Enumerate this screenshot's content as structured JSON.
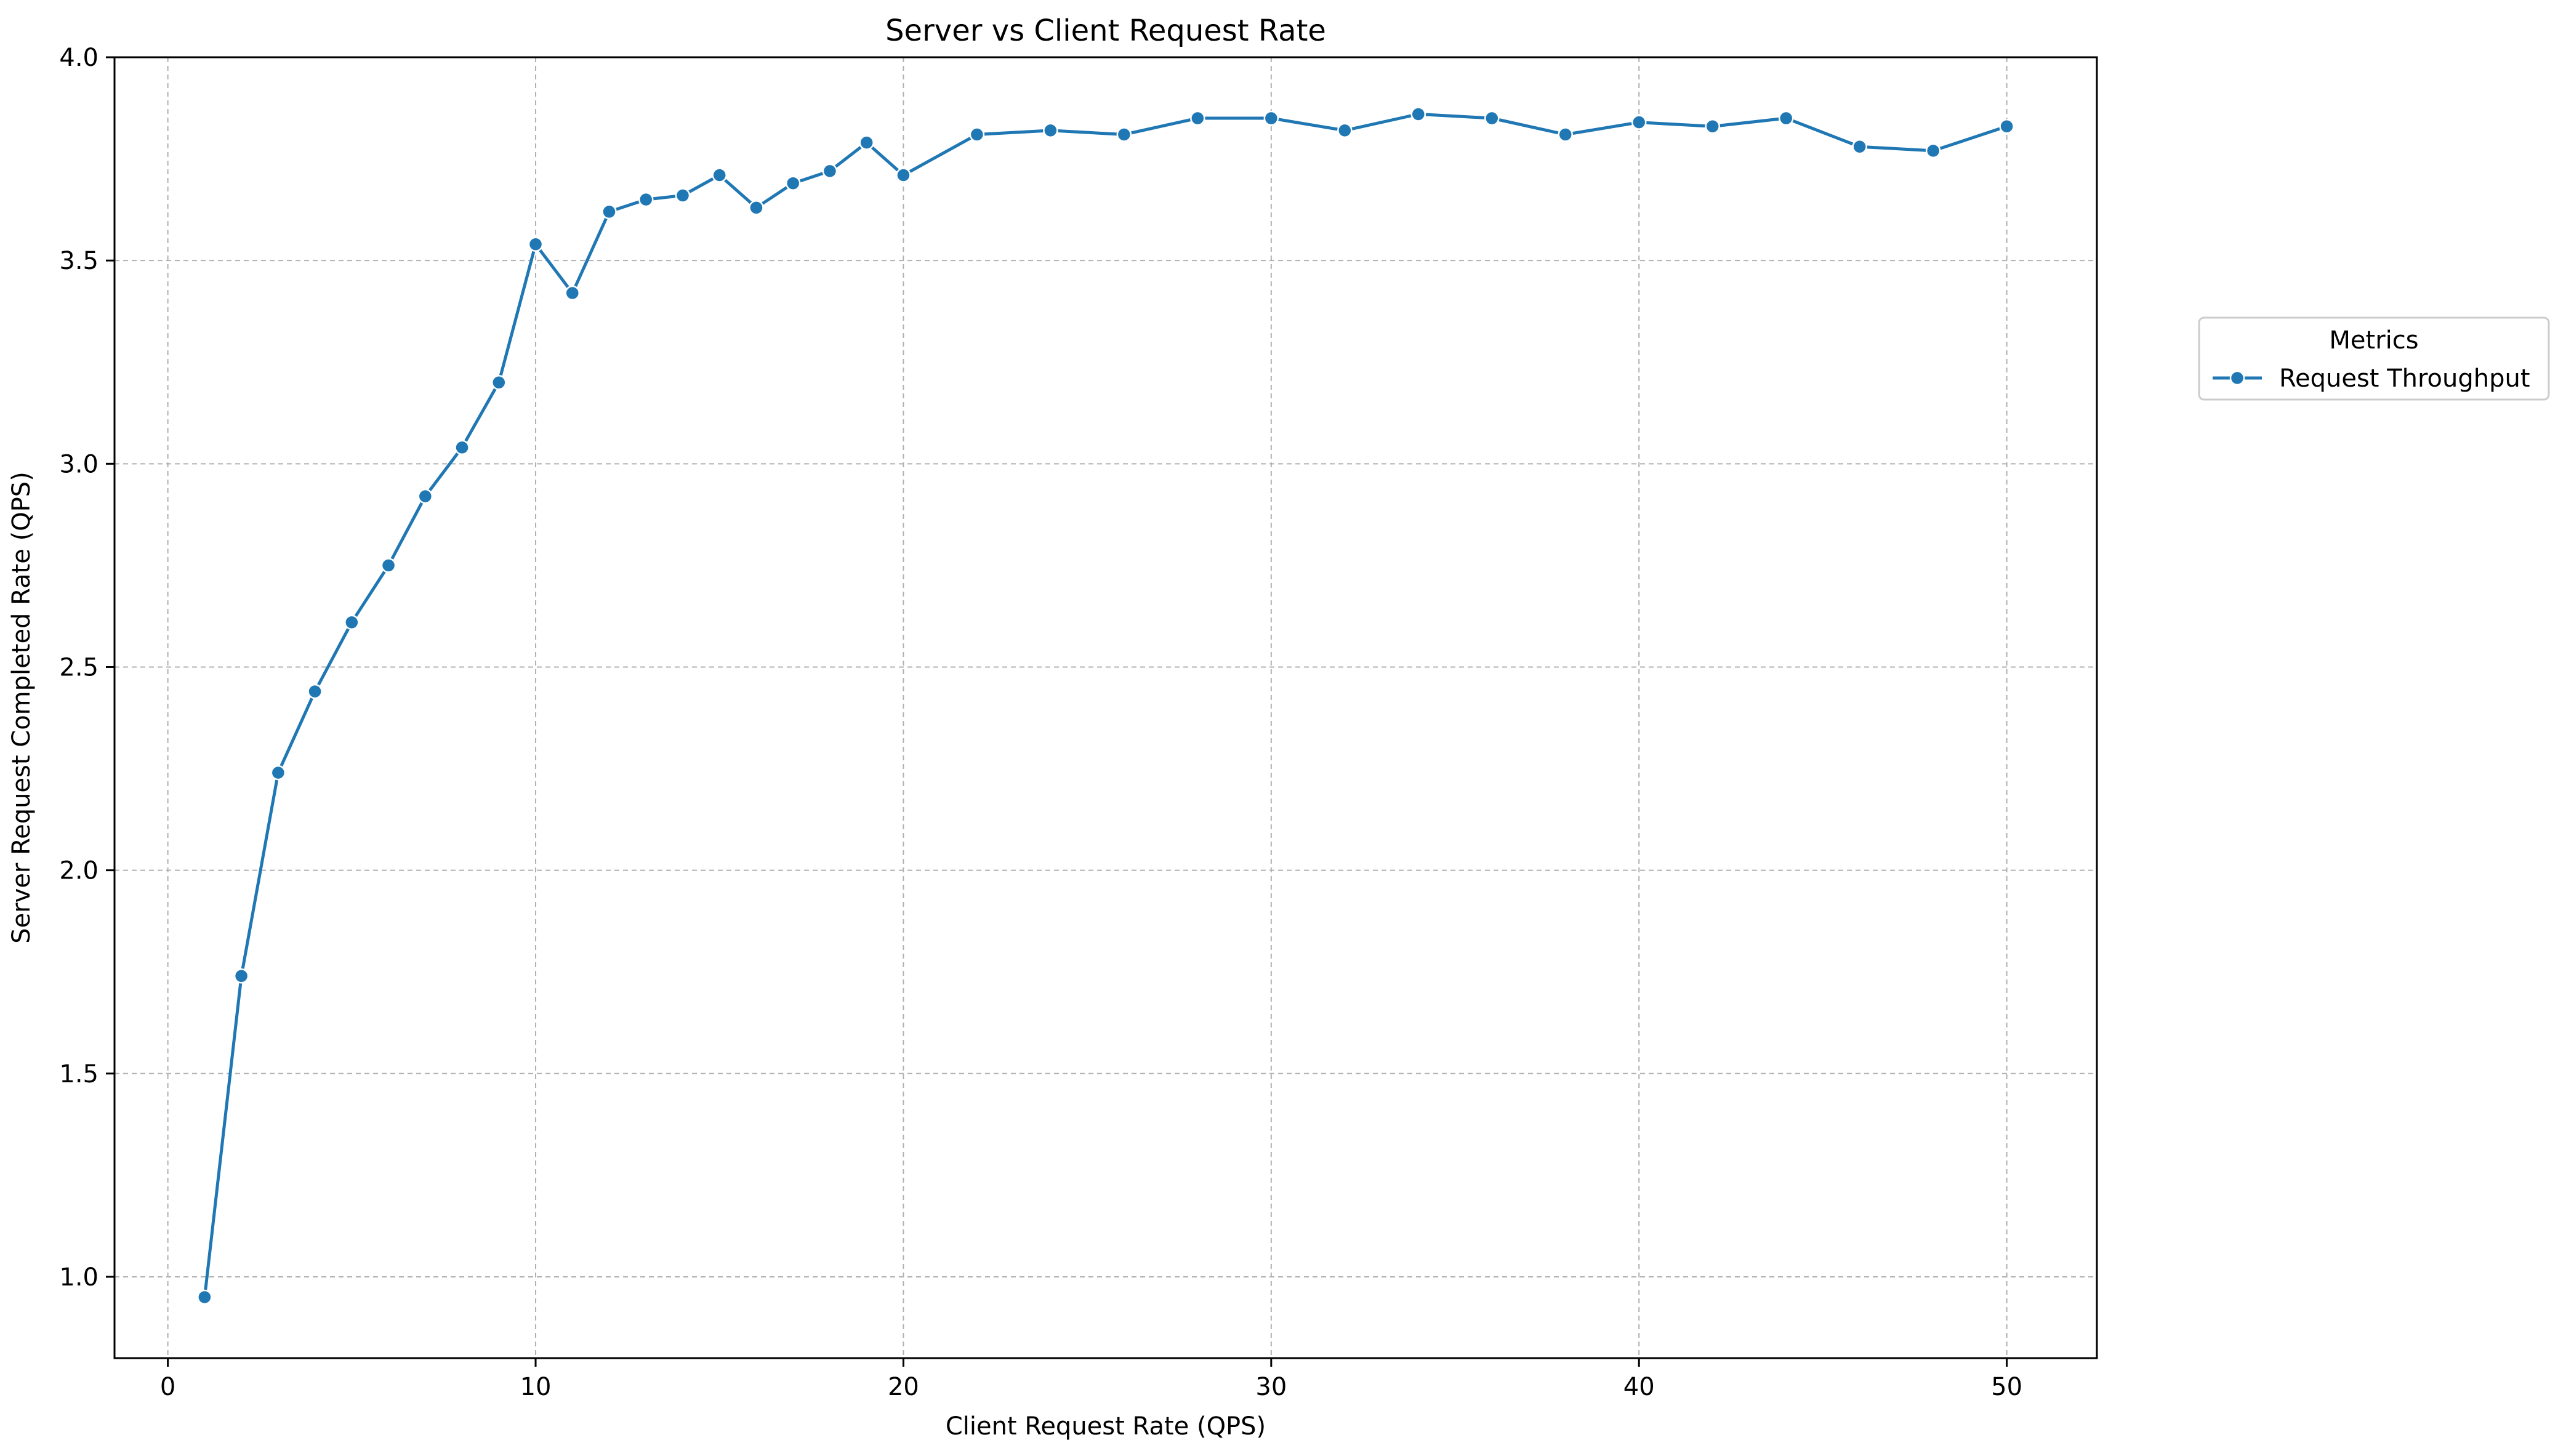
{
  "chart_data": {
    "type": "line",
    "title": "Server vs Client Request Rate",
    "xlabel": "Client Request Rate (QPS)",
    "ylabel": "Server Request Completed Rate (QPS)",
    "xlim": [
      -1.45,
      52.45
    ],
    "ylim": [
      0.8,
      4.0
    ],
    "xticks": [
      0,
      10,
      20,
      30,
      40,
      50
    ],
    "yticks": [
      1.0,
      1.5,
      2.0,
      2.5,
      3.0,
      3.5,
      4.0
    ],
    "xtick_labels": [
      "0",
      "10",
      "20",
      "30",
      "40",
      "50"
    ],
    "ytick_labels": [
      "1.0",
      "1.5",
      "2.0",
      "2.5",
      "3.0",
      "3.5",
      "4.0"
    ],
    "grid": true,
    "legend": {
      "title": "Metrics",
      "placement": "outside-right-top"
    },
    "series": [
      {
        "name": "Request Throughput",
        "color": "#1f77b4",
        "marker": "circle",
        "x": [
          1,
          2,
          3,
          4,
          5,
          6,
          7,
          8,
          9,
          10,
          11,
          12,
          13,
          14,
          15,
          16,
          17,
          18,
          19,
          20,
          22,
          24,
          26,
          28,
          30,
          32,
          34,
          36,
          38,
          40,
          42,
          44,
          46,
          48,
          50
        ],
        "y": [
          0.95,
          1.74,
          2.24,
          2.44,
          2.61,
          2.75,
          2.92,
          3.04,
          3.2,
          3.54,
          3.42,
          3.62,
          3.65,
          3.66,
          3.71,
          3.63,
          3.69,
          3.72,
          3.79,
          3.71,
          3.81,
          3.82,
          3.81,
          3.85,
          3.85,
          3.82,
          3.86,
          3.85,
          3.81,
          3.84,
          3.83,
          3.85,
          3.78,
          3.77,
          3.83
        ]
      }
    ]
  }
}
